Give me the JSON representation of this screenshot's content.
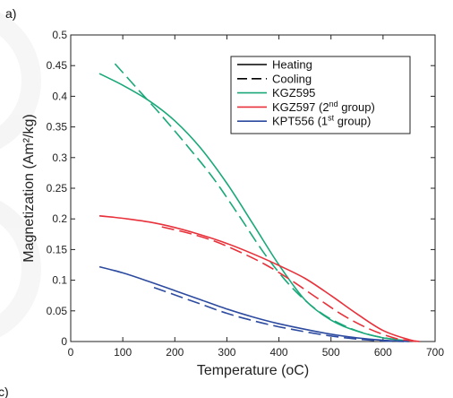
{
  "panel_label": "a)",
  "bottom_panel_label": "c)",
  "chart_data": {
    "type": "line",
    "xlabel": "Temperature (oC)",
    "ylabel": "Magnetization (Am²/kg)",
    "xlim": [
      0,
      700
    ],
    "ylim": [
      0,
      0.5
    ],
    "x_ticks": [
      "0",
      "100",
      "200",
      "300",
      "400",
      "500",
      "600",
      "700"
    ],
    "y_ticks": [
      "0",
      "0.05",
      "0.1",
      "0.15",
      "0.2",
      "0.25",
      "0.3",
      "0.35",
      "0.4",
      "0.45",
      "0.5"
    ],
    "grid": false,
    "legend_position": "top-right",
    "legend": [
      {
        "label": "Heating",
        "color": "#000000",
        "dash": "solid"
      },
      {
        "label": "Cooling",
        "color": "#000000",
        "dash": "dashed"
      },
      {
        "label": "KGZ595",
        "color": "#1aa87a",
        "dash": "solid"
      },
      {
        "label_main": "KGZ597 (2",
        "label_sup": "nd",
        "label_tail": " group)",
        "color": "#e8313a",
        "dash": "solid"
      },
      {
        "label_main": "KPT556 (1",
        "label_sup": "st",
        "label_tail": " group)",
        "color": "#2c4aa0",
        "dash": "solid"
      }
    ],
    "series": [
      {
        "name": "KGZ595",
        "mode": "Heating",
        "color": "#1aa87a",
        "dash": "solid",
        "x": [
          55,
          100,
          150,
          200,
          250,
          300,
          350,
          400,
          450,
          500,
          550,
          600,
          650
        ],
        "y": [
          0.437,
          0.418,
          0.393,
          0.36,
          0.315,
          0.258,
          0.192,
          0.125,
          0.068,
          0.035,
          0.017,
          0.006,
          0.001
        ]
      },
      {
        "name": "KGZ595",
        "mode": "Cooling",
        "color": "#1aa87a",
        "dash": "dashed",
        "x": [
          85,
          125,
          175,
          225,
          275,
          325,
          375,
          425,
          475,
          525,
          575,
          625
        ],
        "y": [
          0.453,
          0.415,
          0.368,
          0.318,
          0.265,
          0.203,
          0.14,
          0.088,
          0.05,
          0.026,
          0.011,
          0.003
        ]
      },
      {
        "name": "KGZ597 (2nd group)",
        "mode": "Heating",
        "color": "#e8313a",
        "dash": "solid",
        "x": [
          55,
          100,
          150,
          200,
          250,
          300,
          350,
          400,
          450,
          500,
          550,
          600,
          650,
          670
        ],
        "y": [
          0.205,
          0.201,
          0.195,
          0.186,
          0.174,
          0.16,
          0.143,
          0.124,
          0.103,
          0.075,
          0.045,
          0.018,
          0.003,
          0.0
        ]
      },
      {
        "name": "KGZ597 (2nd group)",
        "mode": "Cooling",
        "color": "#e8313a",
        "dash": "dashed",
        "x": [
          175,
          225,
          275,
          325,
          375,
          425,
          475,
          525,
          575,
          625,
          665
        ],
        "y": [
          0.187,
          0.177,
          0.164,
          0.146,
          0.125,
          0.099,
          0.07,
          0.042,
          0.02,
          0.005,
          0.0
        ]
      },
      {
        "name": "KPT556 (1st group)",
        "mode": "Heating",
        "color": "#2c4aa0",
        "dash": "solid",
        "x": [
          55,
          100,
          150,
          200,
          250,
          300,
          350,
          400,
          450,
          500,
          550,
          600,
          650
        ],
        "y": [
          0.122,
          0.112,
          0.098,
          0.083,
          0.068,
          0.053,
          0.04,
          0.029,
          0.02,
          0.012,
          0.006,
          0.002,
          0.0
        ]
      },
      {
        "name": "KPT556 (1st group)",
        "mode": "Cooling",
        "color": "#2c4aa0",
        "dash": "dashed",
        "x": [
          160,
          200,
          250,
          300,
          350,
          400,
          450,
          500,
          550,
          600,
          640
        ],
        "y": [
          0.088,
          0.076,
          0.061,
          0.046,
          0.034,
          0.024,
          0.016,
          0.009,
          0.004,
          0.001,
          0.0
        ]
      }
    ]
  }
}
